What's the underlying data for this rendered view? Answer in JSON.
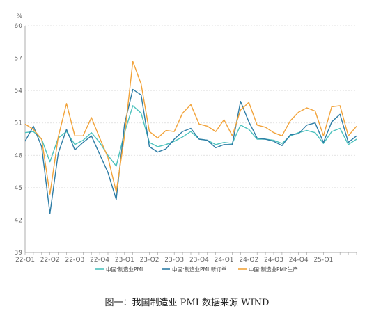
{
  "chart_data": {
    "type": "line",
    "unit": "%",
    "ylim": [
      39,
      60
    ],
    "y_ticks": [
      "39",
      "42",
      "45",
      "48",
      "51",
      "54",
      "57",
      "60"
    ],
    "x_tick_labels": [
      "22-Q1",
      "22-Q2",
      "22-Q3",
      "22-Q4",
      "23-Q1",
      "23-Q2",
      "23-Q3",
      "23-Q4",
      "24-Q1",
      "24-Q2",
      "24-Q3",
      "24-Q4",
      "25-Q1"
    ],
    "grid": "horizontal-dashed",
    "legend_position": "bottom",
    "x": [
      "2022-01",
      "2022-02",
      "2022-03",
      "2022-04",
      "2022-05",
      "2022-06",
      "2022-07",
      "2022-08",
      "2022-09",
      "2022-10",
      "2022-11",
      "2022-12",
      "2023-01",
      "2023-02",
      "2023-03",
      "2023-04",
      "2023-05",
      "2023-06",
      "2023-07",
      "2023-08",
      "2023-09",
      "2023-10",
      "2023-11",
      "2023-12",
      "2024-01",
      "2024-02",
      "2024-03",
      "2024-04",
      "2024-05",
      "2024-06",
      "2024-07",
      "2024-08",
      "2024-09",
      "2024-10",
      "2024-11",
      "2024-12",
      "2025-01",
      "2025-02",
      "2025-03",
      "2025-04",
      "2025-05"
    ],
    "series": [
      {
        "name": "中国:制造业PMI",
        "color": "#4cc2bd",
        "values": [
          50.1,
          50.2,
          49.5,
          47.4,
          49.6,
          50.2,
          49.0,
          49.4,
          50.1,
          49.2,
          48.0,
          47.0,
          50.1,
          52.6,
          51.9,
          49.2,
          48.8,
          49.0,
          49.3,
          49.7,
          50.2,
          49.5,
          49.4,
          49.0,
          49.2,
          49.1,
          50.8,
          50.4,
          49.5,
          49.5,
          49.4,
          49.1,
          49.8,
          50.1,
          50.3,
          50.1,
          49.1,
          50.2,
          50.5,
          49.0,
          49.5
        ]
      },
      {
        "name": "中国:制造业PMI:新订单",
        "color": "#2e7da6",
        "values": [
          49.3,
          50.7,
          48.8,
          42.6,
          48.2,
          50.4,
          48.5,
          49.2,
          49.8,
          48.1,
          46.4,
          43.9,
          50.9,
          54.1,
          53.6,
          48.8,
          48.3,
          48.6,
          49.5,
          50.2,
          50.5,
          49.5,
          49.4,
          48.7,
          49.0,
          49.0,
          53.0,
          51.1,
          49.6,
          49.5,
          49.3,
          48.9,
          49.9,
          50.0,
          50.8,
          51.0,
          49.2,
          51.1,
          51.8,
          49.2,
          49.8
        ]
      },
      {
        "name": "中国:制造业PMI:生产",
        "color": "#f2a33a",
        "values": [
          50.9,
          50.4,
          49.5,
          44.4,
          49.7,
          52.8,
          49.8,
          49.8,
          51.5,
          49.6,
          47.8,
          44.6,
          49.8,
          56.7,
          54.6,
          50.2,
          49.6,
          50.3,
          50.2,
          51.9,
          52.7,
          50.9,
          50.7,
          50.2,
          51.3,
          49.8,
          52.2,
          52.9,
          50.8,
          50.6,
          50.1,
          49.8,
          51.2,
          52.0,
          52.4,
          52.1,
          49.8,
          52.5,
          52.6,
          49.8,
          50.7
        ]
      }
    ]
  },
  "caption": "图一：我国制造业 PMI 数据来源 WIND"
}
